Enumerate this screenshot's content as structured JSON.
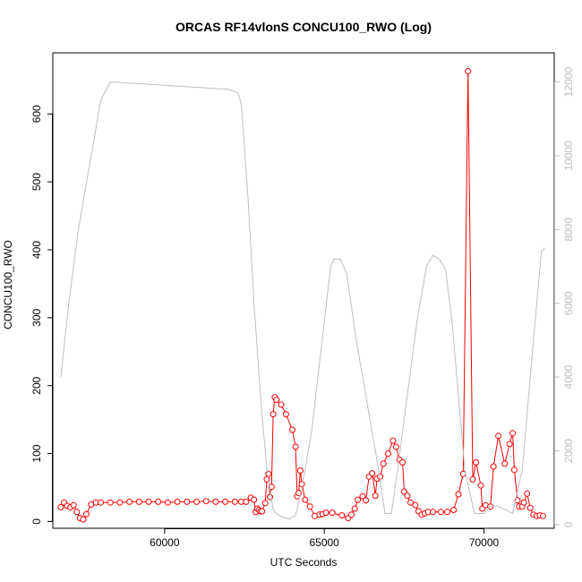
{
  "chart_data": {
    "type": "line",
    "title": "ORCAS RF14vlonS CONCU100_RWO (Log)",
    "xlabel": "UTC Seconds",
    "ylabel": "CONCU100_RWO",
    "xlim": [
      56500,
      72200
    ],
    "ylim": [
      -10,
      690
    ],
    "y2lim": [
      -100,
      12790
    ],
    "xticks": [
      60000,
      65000,
      70000
    ],
    "yticks": [
      0,
      100,
      200,
      300,
      400,
      500,
      600
    ],
    "y2ticks": [
      0,
      2000,
      4000,
      6000,
      8000,
      10000,
      12000
    ],
    "colors": {
      "primary": "#ff0000",
      "secondary": "#bdbdbd",
      "frame": "#000000"
    },
    "series": [
      {
        "role": "primary",
        "style": "line+points",
        "color": "#ff0000",
        "x": [
          56750,
          56850,
          56950,
          57050,
          57150,
          57250,
          57350,
          57450,
          57550,
          57700,
          57850,
          58000,
          58300,
          58600,
          58900,
          59200,
          59500,
          59800,
          60100,
          60400,
          60700,
          61000,
          61300,
          61600,
          61900,
          62200,
          62400,
          62550,
          62700,
          62800,
          62850,
          62900,
          62950,
          63000,
          63050,
          63150,
          63200,
          63250,
          63300,
          63350,
          63400,
          63450,
          63500,
          63650,
          63800,
          64000,
          64100,
          64150,
          64200,
          64250,
          64300,
          64400,
          64550,
          64700,
          64850,
          64950,
          65050,
          65250,
          65550,
          65750,
          65850,
          65950,
          66050,
          66200,
          66300,
          66400,
          66500,
          66600,
          66650,
          66750,
          66850,
          67000,
          67150,
          67250,
          67350,
          67450,
          67500,
          67600,
          67700,
          67850,
          67950,
          68050,
          68150,
          68250,
          68400,
          68650,
          68850,
          69050,
          69200,
          69350,
          69500,
          69650,
          69750,
          69900,
          69950,
          70050,
          70200,
          70300,
          70450,
          70650,
          70800,
          70900,
          70950,
          71050,
          71100,
          71200,
          71250,
          71350,
          71450,
          71550,
          71650,
          71750,
          71850
        ],
        "y": [
          21,
          28,
          23,
          21,
          24,
          14,
          5,
          3,
          11,
          25,
          28,
          28,
          28,
          28,
          29,
          29,
          29,
          29,
          28,
          29,
          29,
          29,
          30,
          29,
          29,
          29,
          29,
          29,
          35,
          32,
          14,
          19,
          17,
          15,
          15,
          27,
          62,
          70,
          36,
          51,
          158,
          183,
          179,
          172,
          158,
          135,
          110,
          37,
          42,
          75,
          55,
          32,
          22,
          8,
          10,
          11,
          13,
          13,
          9,
          5,
          10,
          19,
          32,
          37,
          31,
          66,
          71,
          38,
          63,
          66,
          85,
          100,
          119,
          110,
          91,
          87,
          44,
          38,
          28,
          24,
          15,
          10,
          12,
          14,
          14,
          14,
          14,
          17,
          40,
          70,
          663,
          62,
          87,
          53,
          19,
          24,
          22,
          81,
          126,
          85,
          114,
          130,
          76,
          31,
          22,
          22,
          28,
          41,
          20,
          10,
          8,
          9,
          8
        ]
      },
      {
        "role": "secondary",
        "style": "line",
        "color": "#bdbdbd",
        "x": [
          56750,
          57000,
          57300,
          57500,
          57700,
          58000,
          58300,
          62000,
          62300,
          62400,
          62600,
          62800,
          63000,
          63200,
          63400,
          63500,
          63700,
          63900,
          64100,
          64300,
          64600,
          64800,
          65000,
          65200,
          65300,
          65500,
          65700,
          66000,
          66400,
          66700,
          66900,
          67100,
          67300,
          67600,
          67900,
          68200,
          68400,
          68600,
          68800,
          69000,
          69200,
          69400,
          69700,
          70000,
          70200,
          70400,
          70700,
          70900,
          71200,
          71500,
          71800,
          71900
        ],
        "y": [
          4000,
          6000,
          8000,
          9000,
          10000,
          11500,
          12000,
          11800,
          11700,
          11400,
          9000,
          6000,
          3500,
          1500,
          400,
          300,
          200,
          150,
          250,
          1000,
          2500,
          4000,
          5500,
          7000,
          7200,
          7200,
          6800,
          5000,
          3000,
          1500,
          300,
          300,
          1500,
          3500,
          5500,
          7000,
          7300,
          7200,
          6900,
          5500,
          3500,
          1500,
          300,
          300,
          500,
          500,
          400,
          300,
          1500,
          4500,
          7400,
          7500
        ]
      }
    ]
  }
}
